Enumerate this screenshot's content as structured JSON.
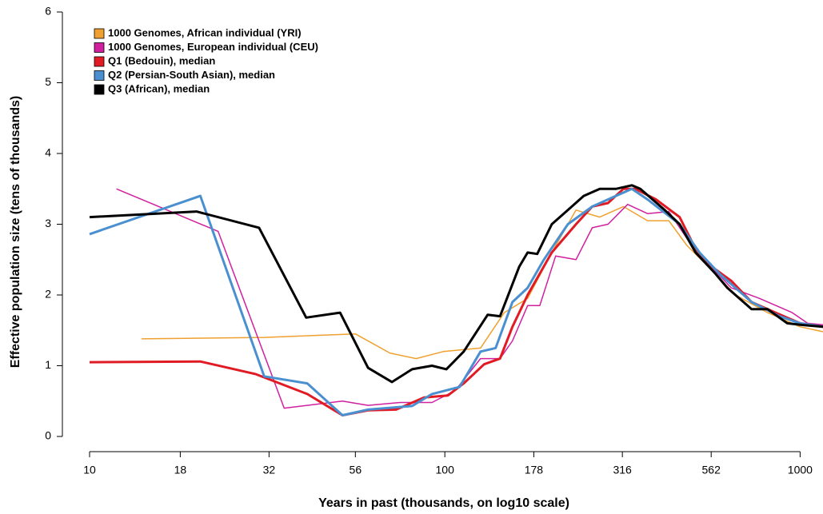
{
  "chart_data": {
    "type": "line",
    "xlabel": "Years in past (thousands, on log10 scale)",
    "ylabel": "Effective population size (tens of thousands)",
    "xscale": "log",
    "xlim": [
      10,
      1160
    ],
    "ylim": [
      0,
      6
    ],
    "xticks": [
      10,
      18,
      32,
      56,
      100,
      178,
      316,
      562,
      1000
    ],
    "yticks": [
      0,
      1,
      2,
      3,
      4,
      5,
      6
    ],
    "legend": "upper left",
    "series": [
      {
        "name": "1000 Genomes, African individual (YRI)",
        "color": "#f0a030",
        "width": 1.5,
        "x": [
          14,
          31,
          56,
          70,
          83,
          99,
          126,
          147,
          171,
          200,
          234,
          273,
          318,
          372,
          427,
          480,
          564,
          658,
          810,
          1000,
          1160
        ],
        "values": [
          1.38,
          1.4,
          1.45,
          1.18,
          1.1,
          1.2,
          1.25,
          1.75,
          1.95,
          2.6,
          3.2,
          3.1,
          3.25,
          3.05,
          3.05,
          2.7,
          2.35,
          2.0,
          1.75,
          1.55,
          1.48
        ]
      },
      {
        "name": "1000 Genomes, European individual (CEU)",
        "color": "#d020a0",
        "width": 1.5,
        "x": [
          11.9,
          23,
          35.3,
          51.5,
          60.8,
          74.8,
          92,
          107,
          126,
          143,
          155,
          171,
          185,
          205,
          234,
          260,
          288,
          327,
          372,
          427,
          480,
          550,
          640,
          770,
          950,
          1050,
          1160
        ],
        "values": [
          3.5,
          2.9,
          0.4,
          0.5,
          0.44,
          0.48,
          0.48,
          0.65,
          1.1,
          1.1,
          1.35,
          1.85,
          1.85,
          2.55,
          2.5,
          2.95,
          3.0,
          3.28,
          3.15,
          3.18,
          2.8,
          2.45,
          2.1,
          1.95,
          1.75,
          1.6,
          1.58
        ]
      },
      {
        "name": "Q1 (Bedouin), median",
        "color": "#e01b24",
        "width": 3,
        "x": [
          10,
          20.5,
          29.4,
          41,
          51.5,
          60.8,
          72.9,
          87.4,
          102,
          113,
          129,
          143,
          155,
          171,
          200,
          234,
          260,
          288,
          318,
          344,
          393,
          458,
          508,
          564,
          640,
          730,
          853,
          1000,
          1160
        ],
        "values": [
          1.05,
          1.06,
          0.88,
          0.6,
          0.3,
          0.37,
          0.38,
          0.55,
          0.58,
          0.75,
          1.02,
          1.1,
          1.55,
          2.0,
          2.6,
          3.0,
          3.25,
          3.3,
          3.5,
          3.5,
          3.35,
          3.1,
          2.65,
          2.4,
          2.2,
          1.9,
          1.75,
          1.6,
          1.55
        ]
      },
      {
        "name": "Q2 (Persian-South Asian), median",
        "color": "#4a90d0",
        "width": 3,
        "x": [
          10,
          20.5,
          31,
          41,
          51.5,
          60.8,
          80.9,
          92,
          110,
          126,
          139,
          155,
          171,
          190,
          222,
          260,
          303,
          336,
          372,
          458,
          521,
          593,
          730,
          875,
          1000,
          1160
        ],
        "values": [
          2.86,
          3.4,
          0.85,
          0.75,
          0.3,
          0.38,
          0.43,
          0.6,
          0.7,
          1.2,
          1.25,
          1.9,
          2.1,
          2.5,
          3.0,
          3.25,
          3.4,
          3.5,
          3.35,
          3.0,
          2.6,
          2.3,
          1.9,
          1.7,
          1.6,
          1.55
        ]
      },
      {
        "name": "Q3 (African), median",
        "color": "#000000",
        "width": 3,
        "x": [
          10,
          20,
          30,
          40.7,
          50.7,
          60.8,
          71,
          80.9,
          92,
          101,
          113,
          132,
          143,
          162,
          171,
          182,
          200,
          222,
          246,
          273,
          303,
          336,
          355,
          416,
          458,
          508,
          578,
          624,
          730,
          810,
          920,
          1000,
          1160
        ],
        "values": [
          3.1,
          3.18,
          2.95,
          1.68,
          1.75,
          0.97,
          0.77,
          0.95,
          1.0,
          0.95,
          1.2,
          1.72,
          1.7,
          2.4,
          2.6,
          2.58,
          3.0,
          3.2,
          3.4,
          3.5,
          3.5,
          3.55,
          3.5,
          3.2,
          3.0,
          2.6,
          2.3,
          2.1,
          1.8,
          1.8,
          1.6,
          1.58,
          1.55
        ]
      }
    ]
  }
}
